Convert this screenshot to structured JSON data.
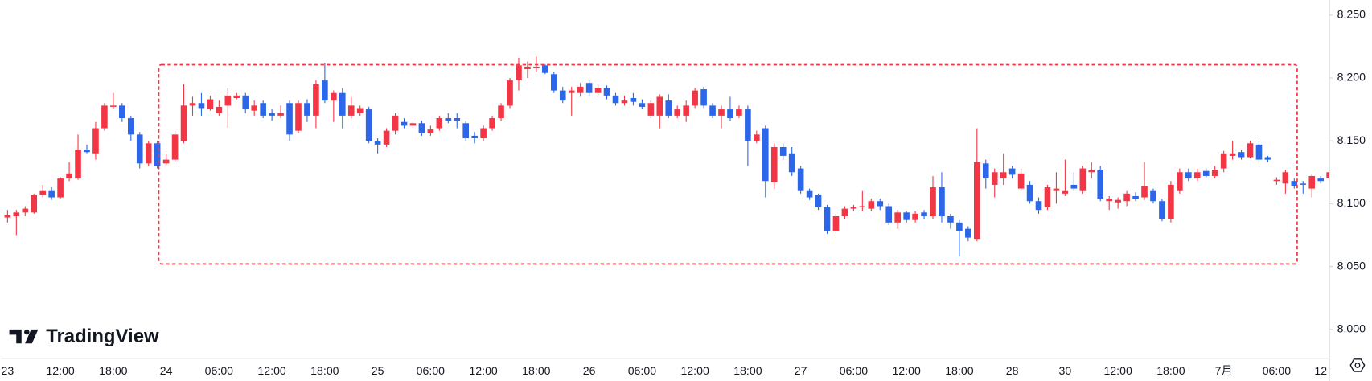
{
  "chart_data": {
    "type": "candlestick",
    "watermark": "TradingView",
    "up_color": "#f23645",
    "down_color": "#2b67e8",
    "categories": [
      "23",
      null,
      null,
      null,
      null,
      null,
      "12:00",
      null,
      null,
      null,
      null,
      null,
      "18:00",
      null,
      null,
      null,
      null,
      null,
      "24",
      null,
      null,
      null,
      null,
      null,
      "06:00",
      null,
      null,
      null,
      null,
      null,
      "12:00",
      null,
      null,
      null,
      null,
      null,
      "18:00",
      null,
      null,
      null,
      null,
      null,
      "25",
      null,
      null,
      null,
      null,
      null,
      "06:00",
      null,
      null,
      null,
      null,
      null,
      "12:00",
      null,
      null,
      null,
      null,
      null,
      "18:00",
      null,
      null,
      null,
      null,
      null,
      "26",
      null,
      null,
      null,
      null,
      null,
      "06:00",
      null,
      null,
      null,
      null,
      null,
      "12:00",
      null,
      null,
      null,
      null,
      null,
      "18:00",
      null,
      null,
      null,
      null,
      null,
      "27",
      null,
      null,
      null,
      null,
      null,
      "06:00",
      null,
      null,
      null,
      null,
      null,
      "12:00",
      null,
      null,
      null,
      null,
      null,
      "18:00",
      null,
      null,
      null,
      null,
      null,
      "28",
      null,
      null,
      null,
      null,
      null,
      "30",
      null,
      null,
      null,
      null,
      null,
      "12:00",
      null,
      null,
      null,
      null,
      null,
      "18:00",
      null,
      null,
      null,
      null,
      null,
      "7月",
      null,
      null,
      null,
      null,
      null,
      "06:00",
      null,
      null,
      null,
      null,
      null,
      "12"
    ],
    "open": [
      8.089,
      8.09,
      8.093,
      8.093,
      8.107,
      8.11,
      8.105,
      8.12,
      8.12,
      8.143,
      8.14,
      8.16,
      8.177,
      8.178,
      8.168,
      8.155,
      8.132,
      8.148,
      8.132,
      8.135,
      8.15,
      8.178,
      8.18,
      8.175,
      8.172,
      8.178,
      8.184,
      8.186,
      8.174,
      8.18,
      8.172,
      8.17,
      8.18,
      8.158,
      8.18,
      8.17,
      8.198,
      8.182,
      8.188,
      8.17,
      8.172,
      8.175,
      8.15,
      8.147,
      8.158,
      8.165,
      8.162,
      8.164,
      8.156,
      8.16,
      8.168,
      8.168,
      8.164,
      8.154,
      8.152,
      8.16,
      8.168,
      8.178,
      8.198,
      8.207,
      8.208,
      8.21,
      8.203,
      8.19,
      8.188,
      8.188,
      8.196,
      8.188,
      8.192,
      8.186,
      8.18,
      8.184,
      8.18,
      8.17,
      8.17,
      8.182,
      8.17,
      8.17,
      8.178,
      8.191,
      8.178,
      8.17,
      8.175,
      8.17,
      8.175,
      8.15,
      8.16,
      8.117,
      8.145,
      8.14,
      8.128,
      8.11,
      8.107,
      8.097,
      8.078,
      8.09,
      8.096,
      8.097,
      8.096,
      8.102,
      8.098,
      8.085,
      8.093,
      8.087,
      8.093,
      8.09,
      8.113,
      8.09,
      8.085,
      8.08,
      8.072,
      8.132,
      8.115,
      8.12,
      8.128,
      8.112,
      8.115,
      8.102,
      8.097,
      8.11,
      8.108,
      8.115,
      8.11,
      8.125,
      8.127,
      8.102,
      8.101,
      8.102,
      8.106,
      8.105,
      8.11,
      8.102,
      8.088,
      8.11,
      8.125,
      8.12,
      8.126,
      8.122,
      8.128,
      8.138,
      8.141,
      8.137,
      8.147,
      8.137,
      8.118,
      8.116,
      8.118,
      8.116,
      8.112,
      8.12,
      8.12
    ],
    "close": [
      8.091,
      8.093,
      8.096,
      8.107,
      8.11,
      8.105,
      8.12,
      8.124,
      8.143,
      8.141,
      8.16,
      8.178,
      8.178,
      8.168,
      8.155,
      8.132,
      8.148,
      8.13,
      8.135,
      8.155,
      8.178,
      8.18,
      8.176,
      8.183,
      8.177,
      8.186,
      8.186,
      8.175,
      8.178,
      8.17,
      8.17,
      8.172,
      8.155,
      8.18,
      8.17,
      8.195,
      8.182,
      8.188,
      8.17,
      8.178,
      8.176,
      8.15,
      8.147,
      8.158,
      8.17,
      8.162,
      8.164,
      8.156,
      8.159,
      8.168,
      8.166,
      8.166,
      8.152,
      8.152,
      8.16,
      8.168,
      8.178,
      8.198,
      8.21,
      8.209,
      8.209,
      8.204,
      8.19,
      8.182,
      8.19,
      8.193,
      8.188,
      8.192,
      8.186,
      8.18,
      8.182,
      8.181,
      8.177,
      8.18,
      8.185,
      8.17,
      8.175,
      8.178,
      8.19,
      8.178,
      8.17,
      8.175,
      8.168,
      8.175,
      8.15,
      8.155,
      8.118,
      8.145,
      8.138,
      8.125,
      8.11,
      8.105,
      8.097,
      8.078,
      8.09,
      8.096,
      8.097,
      8.098,
      8.102,
      8.098,
      8.085,
      8.093,
      8.087,
      8.092,
      8.09,
      8.113,
      8.09,
      8.085,
      8.078,
      8.073,
      8.133,
      8.12,
      8.125,
      8.125,
      8.123,
      8.124,
      8.102,
      8.095,
      8.113,
      8.112,
      8.11,
      8.112,
      8.128,
      8.127,
      8.104,
      8.104,
      8.103,
      8.108,
      8.104,
      8.114,
      8.102,
      8.088,
      8.115,
      8.125,
      8.12,
      8.125,
      8.122,
      8.127,
      8.14,
      8.14,
      8.137,
      8.148,
      8.135,
      8.135,
      8.119,
      8.125,
      8.114,
      8.115,
      8.122,
      8.118,
      8.125
    ],
    "high": [
      8.095,
      8.095,
      8.098,
      8.108,
      8.115,
      8.113,
      8.121,
      8.133,
      8.155,
      8.147,
      8.165,
      8.18,
      8.188,
      8.18,
      8.17,
      8.157,
      8.15,
      8.15,
      8.14,
      8.158,
      8.195,
      8.185,
      8.188,
      8.186,
      8.182,
      8.192,
      8.188,
      8.188,
      8.182,
      8.182,
      8.175,
      8.178,
      8.182,
      8.182,
      8.183,
      8.198,
      8.212,
      8.19,
      8.192,
      8.185,
      8.178,
      8.177,
      8.152,
      8.16,
      8.172,
      8.168,
      8.166,
      8.166,
      8.162,
      8.17,
      8.172,
      8.172,
      8.166,
      8.157,
      8.162,
      8.17,
      8.18,
      8.2,
      8.216,
      8.213,
      8.217,
      8.211,
      8.205,
      8.193,
      8.193,
      8.196,
      8.198,
      8.195,
      8.194,
      8.188,
      8.186,
      8.188,
      8.183,
      8.182,
      8.187,
      8.187,
      8.178,
      8.182,
      8.192,
      8.193,
      8.18,
      8.178,
      8.185,
      8.178,
      8.178,
      8.158,
      8.162,
      8.148,
      8.148,
      8.145,
      8.13,
      8.112,
      8.108,
      8.099,
      8.092,
      8.098,
      8.099,
      8.11,
      8.104,
      8.104,
      8.1,
      8.095,
      8.094,
      8.094,
      8.095,
      8.122,
      8.125,
      8.092,
      8.087,
      8.082,
      8.16,
      8.135,
      8.128,
      8.14,
      8.13,
      8.128,
      8.118,
      8.105,
      8.115,
      8.125,
      8.135,
      8.125,
      8.13,
      8.133,
      8.13,
      8.106,
      8.105,
      8.11,
      8.109,
      8.133,
      8.112,
      8.104,
      8.118,
      8.128,
      8.128,
      8.128,
      8.128,
      8.13,
      8.142,
      8.15,
      8.143,
      8.15,
      8.15,
      8.138,
      8.121,
      8.127,
      8.12,
      8.118,
      8.123,
      8.122,
      8.127
    ],
    "low": [
      8.085,
      8.075,
      8.09,
      8.092,
      8.105,
      8.103,
      8.104,
      8.118,
      8.119,
      8.14,
      8.135,
      8.158,
      8.175,
      8.165,
      8.15,
      8.128,
      8.13,
      8.128,
      8.131,
      8.133,
      8.148,
      8.17,
      8.17,
      8.174,
      8.17,
      8.16,
      8.183,
      8.172,
      8.17,
      8.168,
      8.166,
      8.168,
      8.15,
      8.156,
      8.165,
      8.16,
      8.18,
      8.165,
      8.16,
      8.168,
      8.17,
      8.148,
      8.14,
      8.145,
      8.155,
      8.16,
      8.16,
      8.154,
      8.154,
      8.158,
      8.164,
      8.16,
      8.15,
      8.148,
      8.15,
      8.158,
      8.166,
      8.176,
      8.19,
      8.2,
      8.205,
      8.203,
      8.188,
      8.18,
      8.17,
      8.185,
      8.186,
      8.185,
      8.183,
      8.178,
      8.178,
      8.178,
      8.175,
      8.168,
      8.16,
      8.168,
      8.168,
      8.165,
      8.176,
      8.176,
      8.168,
      8.16,
      8.166,
      8.168,
      8.13,
      8.148,
      8.105,
      8.112,
      8.135,
      8.122,
      8.108,
      8.103,
      8.095,
      8.076,
      8.076,
      8.088,
      8.094,
      8.094,
      8.094,
      8.095,
      8.083,
      8.08,
      8.085,
      8.085,
      8.088,
      8.088,
      8.085,
      8.08,
      8.058,
      8.07,
      8.07,
      8.112,
      8.105,
      8.115,
      8.12,
      8.11,
      8.1,
      8.092,
      8.095,
      8.1,
      8.106,
      8.11,
      8.108,
      8.12,
      8.102,
      8.095,
      8.096,
      8.098,
      8.102,
      8.103,
      8.1,
      8.086,
      8.085,
      8.108,
      8.118,
      8.118,
      8.12,
      8.12,
      8.125,
      8.135,
      8.135,
      8.136,
      8.133,
      8.133,
      8.115,
      8.108,
      8.112,
      8.108,
      8.105,
      8.116,
      8.118
    ],
    "ylim": [
      7.977,
      8.262
    ],
    "yticks": [
      {
        "value": 8.0,
        "label": "8.000"
      },
      {
        "value": 8.05,
        "label": "8.050"
      },
      {
        "value": 8.1,
        "label": "8.100"
      },
      {
        "value": 8.15,
        "label": "8.150"
      },
      {
        "value": 8.2,
        "label": "8.200"
      },
      {
        "value": 8.25,
        "label": "8.250"
      }
    ],
    "grid": false
  }
}
